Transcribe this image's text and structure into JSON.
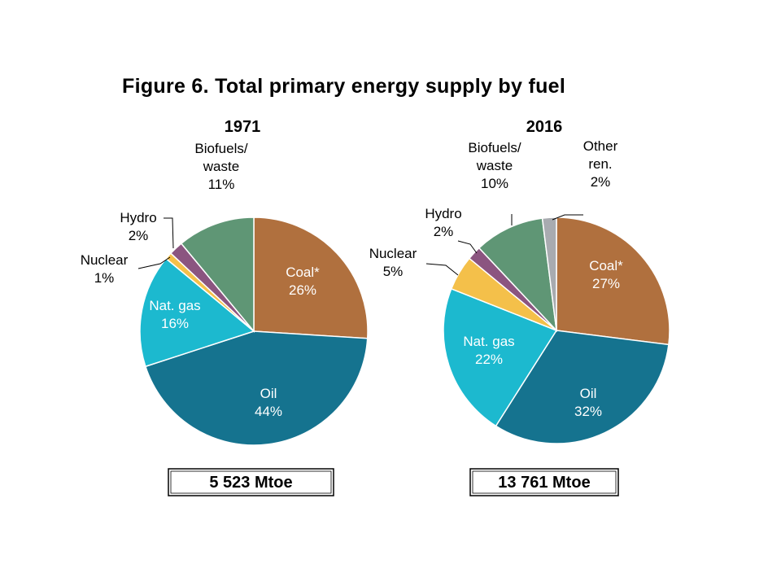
{
  "title": "Figure 6. Total primary energy supply by fuel",
  "colors": {
    "Coal": "#b0703e",
    "Oil": "#15738f",
    "Nat. gas": "#1cb9cf",
    "Nuclear": "#f4c04a",
    "Hydro": "#8b5580",
    "Biofuels/waste": "#5f9675",
    "Other ren.": "#a8abb0"
  },
  "chart_data": [
    {
      "type": "pie",
      "title": "1971",
      "total": "5 523 Mtoe",
      "slices": [
        {
          "name": "Coal",
          "display": "Coal*",
          "value": 26,
          "label": "26%"
        },
        {
          "name": "Oil",
          "display": "Oil",
          "value": 44,
          "label": "44%"
        },
        {
          "name": "Nat. gas",
          "display": "Nat. gas",
          "value": 16,
          "label": "16%"
        },
        {
          "name": "Nuclear",
          "display": "Nuclear",
          "value": 1,
          "label": "1%"
        },
        {
          "name": "Hydro",
          "display": "Hydro",
          "value": 2,
          "label": "2%"
        },
        {
          "name": "Biofuels/waste",
          "display": "Biofuels/ waste",
          "value": 11,
          "label": "11%"
        }
      ]
    },
    {
      "type": "pie",
      "title": "2016",
      "total": "13 761 Mtoe",
      "slices": [
        {
          "name": "Coal",
          "display": "Coal*",
          "value": 27,
          "label": "27%"
        },
        {
          "name": "Oil",
          "display": "Oil",
          "value": 32,
          "label": "32%"
        },
        {
          "name": "Nat. gas",
          "display": "Nat. gas",
          "value": 22,
          "label": "22%"
        },
        {
          "name": "Nuclear",
          "display": "Nuclear",
          "value": 5,
          "label": "5%"
        },
        {
          "name": "Hydro",
          "display": "Hydro",
          "value": 2,
          "label": "2%"
        },
        {
          "name": "Biofuels/waste",
          "display": "Biofuels/ waste",
          "value": 10,
          "label": "10%"
        },
        {
          "name": "Other ren.",
          "display": "Other ren.",
          "value": 2,
          "label": "2%"
        }
      ]
    }
  ]
}
